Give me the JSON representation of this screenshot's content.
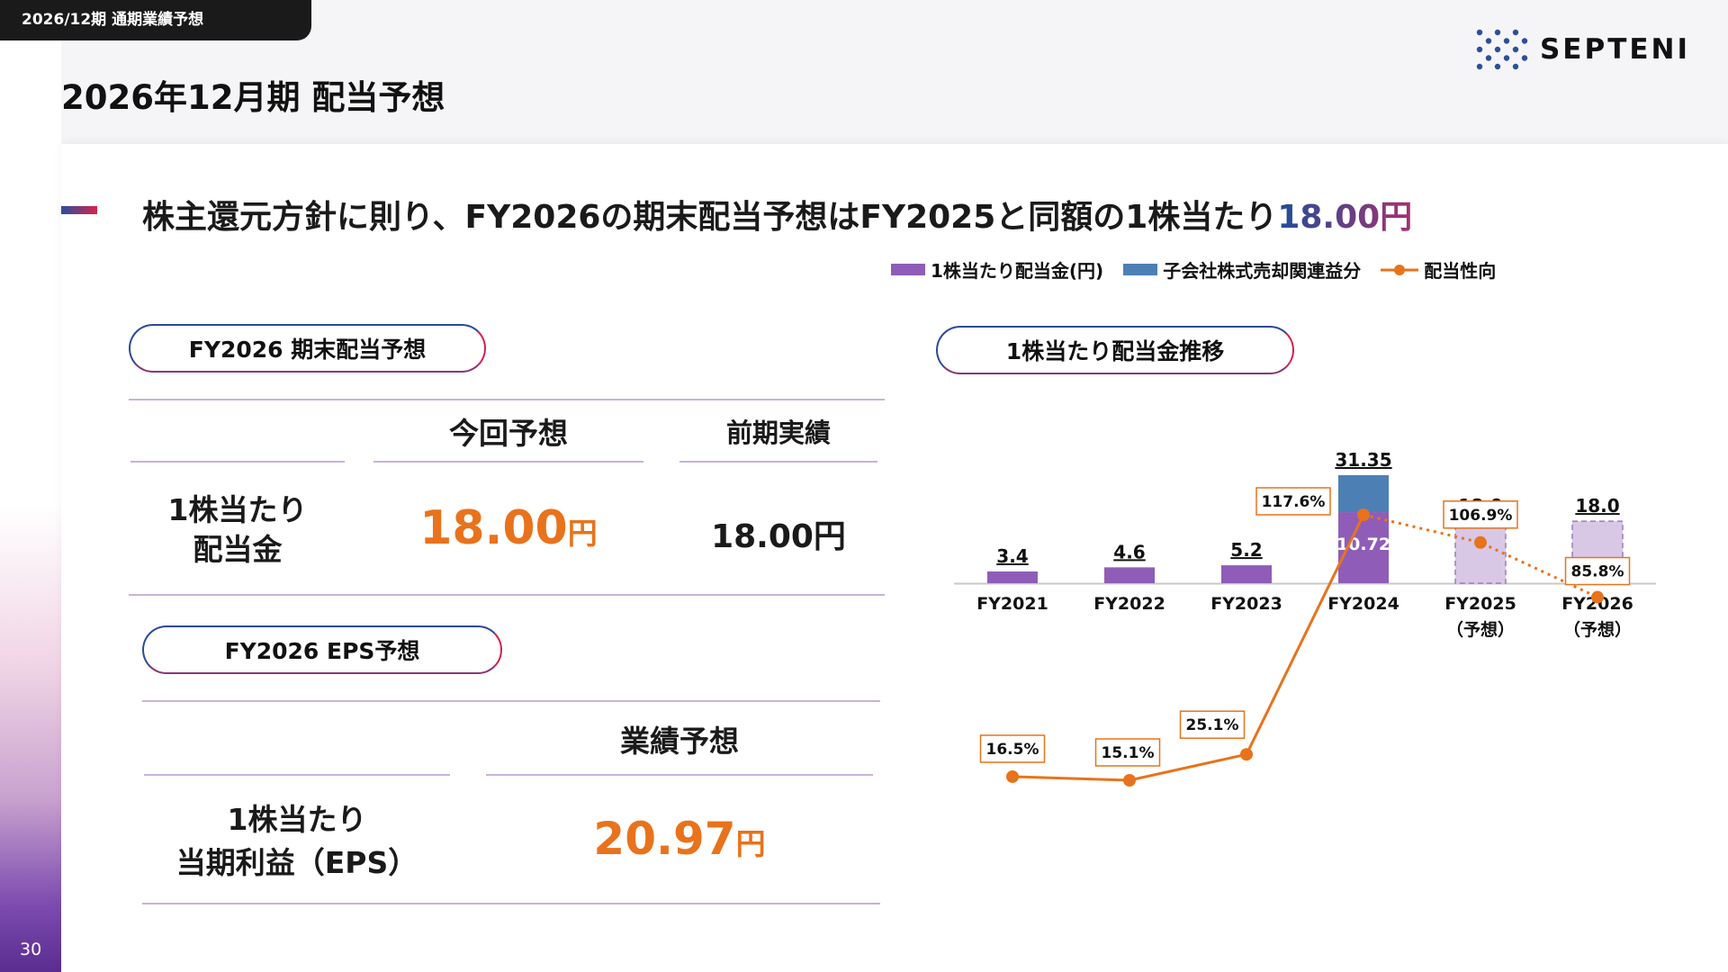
{
  "header": {
    "tab_label": "2026/12期 通期業績予想",
    "page_title": "2026年12月期 配当予想",
    "logo_text": "SEPTENI",
    "page_number": "30"
  },
  "headline": {
    "text": "株主還元方針に則り、FY2026の期末配当予想はFY2025と同額の1株当たり",
    "accent": "18.00円"
  },
  "dividend_section": {
    "pill": "FY2026 期末配当予想",
    "col_forecast": "今回予想",
    "col_prev": "前期実績",
    "row_label_1": "1株当たり",
    "row_label_2": "配当金",
    "forecast_value": "18.00",
    "forecast_unit": "円",
    "prev_value": "18.00円"
  },
  "eps_section": {
    "pill": "FY2026 EPS予想",
    "col_forecast": "業績予想",
    "row_label_1": "1株当たり",
    "row_label_2": "当期利益（EPS）",
    "value": "20.97",
    "unit": "円"
  },
  "chart_pill": "1株当たり配当金推移",
  "legend": {
    "dividend": "1株当たり配当金(円)",
    "subsidiary": "子会社株式売却関連益分",
    "payout": "配当性向"
  },
  "colors": {
    "dividend": "#8f5db7",
    "subsidiary": "#4c80b5",
    "forecast": "#d9c7e6",
    "payout": "#e8731c"
  },
  "chart_data": {
    "type": "bar",
    "categories": [
      "FY2021",
      "FY2022",
      "FY2023",
      "FY2024",
      "FY2025\n（予想）",
      "FY2026\n（予想）"
    ],
    "series": [
      {
        "name": "1株当たり配当金(円)",
        "values": [
          3.4,
          4.6,
          5.2,
          20.63,
          18.0,
          18.0
        ]
      },
      {
        "name": "子会社株式売却関連益分",
        "values": [
          0,
          0,
          0,
          10.72,
          0,
          0
        ]
      },
      {
        "name": "配当性向",
        "values": [
          16.5,
          15.1,
          25.1,
          117.6,
          106.9,
          85.8
        ]
      }
    ],
    "bar_labels": [
      "3.4",
      "4.6",
      "5.2",
      "31.35",
      "18.0",
      "18.0"
    ],
    "stack_label": "10.72",
    "payout_labels": [
      "16.5%",
      "15.1%",
      "25.1%",
      "117.6%",
      "106.9%",
      "85.8%"
    ],
    "forecast_flags": [
      false,
      false,
      false,
      false,
      true,
      true
    ]
  }
}
